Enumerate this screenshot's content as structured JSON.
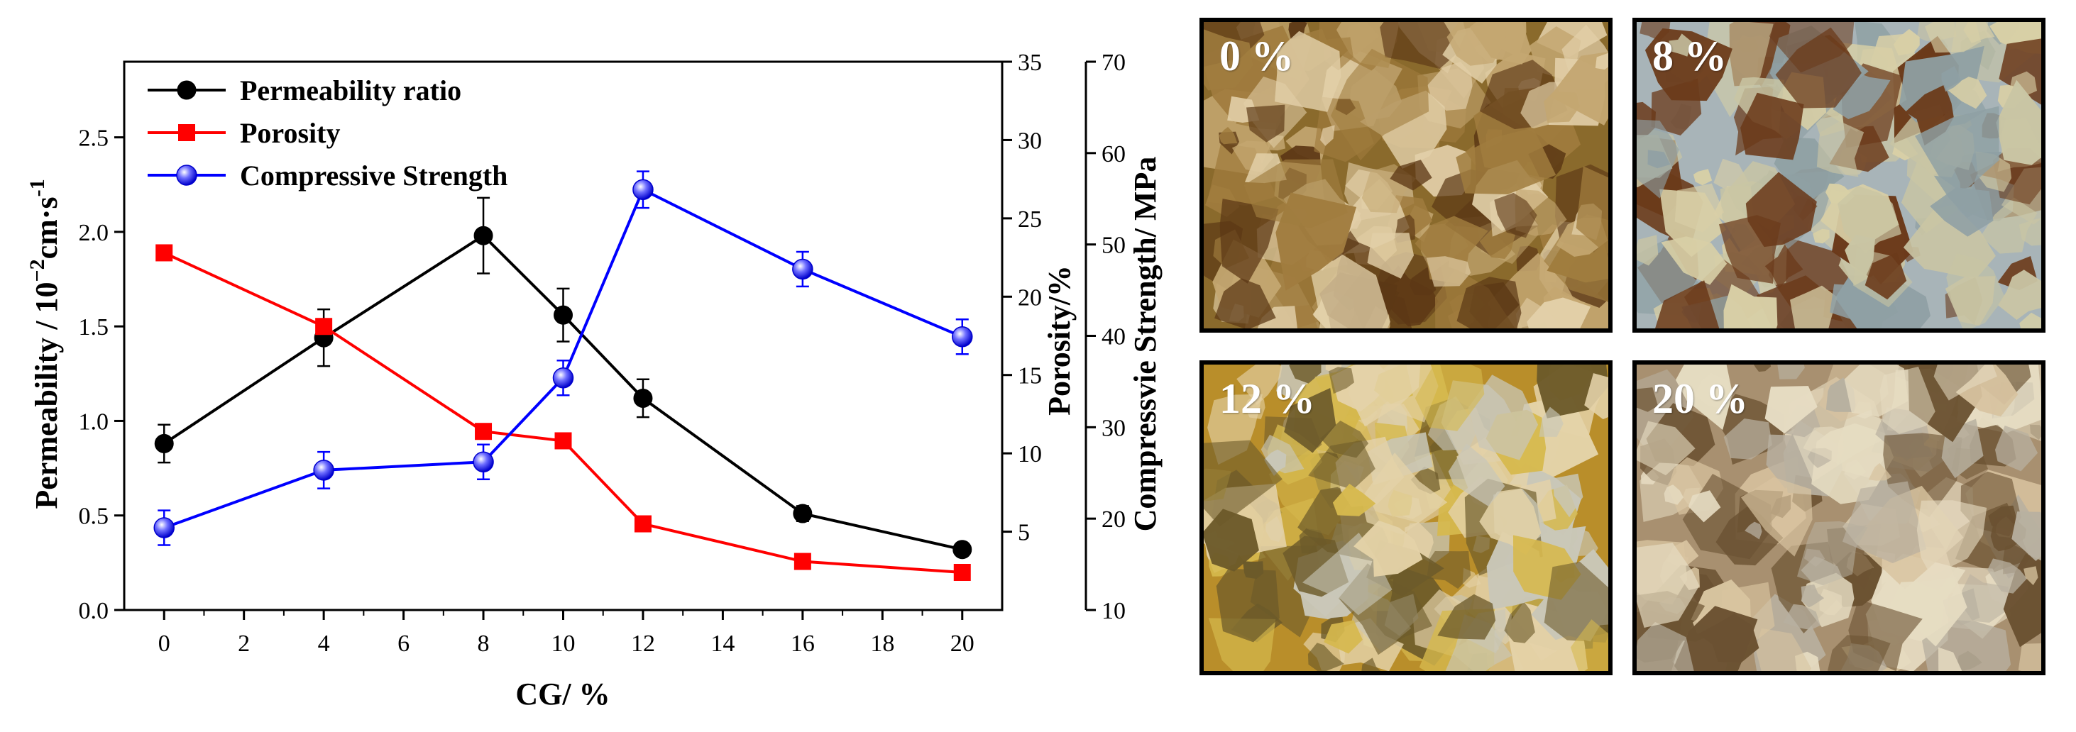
{
  "chart_data": {
    "type": "line",
    "x": [
      0,
      4,
      8,
      10,
      12,
      16,
      20
    ],
    "xlabel": "CG/ %",
    "x_ticks": [
      "0",
      "2",
      "4",
      "6",
      "8",
      "10",
      "12",
      "14",
      "16",
      "18",
      "20"
    ],
    "xlim": [
      -1,
      21
    ],
    "axes": {
      "left": {
        "label_main": "Permeability / 10",
        "label_sup1": "−2",
        "label_mid": "cm·s",
        "label_sup2": "-1",
        "range": [
          0,
          2.9
        ],
        "ticks": [
          "0.0",
          "0.5",
          "1.0",
          "1.5",
          "2.0",
          "2.5"
        ]
      },
      "right1": {
        "label": "Porosity/%",
        "range": [
          0,
          35
        ],
        "ticks": [
          "5",
          "10",
          "15",
          "20",
          "25",
          "30",
          "35"
        ]
      },
      "right2": {
        "label": "Compressvie Strength/ MPa",
        "range": [
          10,
          70
        ],
        "ticks": [
          "10",
          "20",
          "30",
          "40",
          "50",
          "60",
          "70"
        ]
      }
    },
    "series": [
      {
        "name": "Permeability ratio",
        "axis": "left",
        "color": "#000000",
        "marker": "circle",
        "values": [
          0.88,
          1.44,
          1.98,
          1.56,
          1.12,
          0.51,
          0.32
        ],
        "errors": [
          0.1,
          0.15,
          0.2,
          0.14,
          0.1,
          0.04,
          0.03
        ]
      },
      {
        "name": "Porosity",
        "axis": "right1",
        "color": "#ff0000",
        "marker": "square",
        "values": [
          22.8,
          18.1,
          11.4,
          10.8,
          5.5,
          3.1,
          2.4
        ],
        "errors": [
          0,
          0,
          0,
          0,
          0,
          0,
          0
        ]
      },
      {
        "name": "Compressive Strength",
        "axis": "right2",
        "color": "#0000ff",
        "marker": "sphere",
        "values": [
          19.0,
          25.3,
          26.2,
          35.4,
          56.0,
          47.3,
          39.9
        ],
        "errors": [
          1.9,
          2.0,
          1.9,
          1.9,
          2.0,
          1.9,
          1.9
        ]
      }
    ],
    "legend_position": "top-left",
    "grid": false
  },
  "photos": [
    {
      "label": "0 %",
      "palette": [
        "#8a6a2c",
        "#c4a771",
        "#e2cfa8",
        "#5c3815",
        "#a07c3e"
      ]
    },
    {
      "label": "8 %",
      "palette": [
        "#a8b4b8",
        "#c9c5a4",
        "#d8cfa6",
        "#6b3a1a",
        "#8fa0a4"
      ]
    },
    {
      "label": "12 %",
      "palette": [
        "#b98e2a",
        "#d6b94e",
        "#e4d2a8",
        "#6c5a2a",
        "#c9c7b8"
      ]
    },
    {
      "label": "20 %",
      "palette": [
        "#a89070",
        "#d8c4a0",
        "#e6dcc2",
        "#6b5232",
        "#b8b0a0"
      ]
    }
  ]
}
